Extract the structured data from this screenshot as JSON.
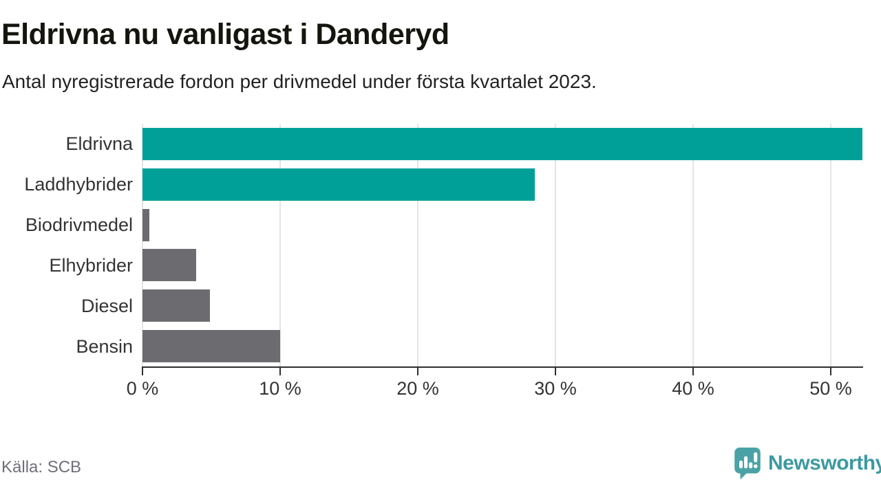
{
  "header": {
    "title": "Eldrivna nu vanligast i Danderyd",
    "subtitle": "Antal nyregistrerade fordon per drivmedel under första kvartalet 2023."
  },
  "chart_data": {
    "type": "bar",
    "orientation": "horizontal",
    "title": "Eldrivna nu vanligast i Danderyd",
    "subtitle": "Antal nyregistrerade fordon per drivmedel under första kvartalet 2023.",
    "categories": [
      "Eldrivna",
      "Laddhybrider",
      "Biodrivmedel",
      "Elhybrider",
      "Diesel",
      "Bensin"
    ],
    "values": [
      52.3,
      28.5,
      0.5,
      3.9,
      4.9,
      10.0
    ],
    "unit": "%",
    "bar_colors": [
      "#00a099",
      "#00a099",
      "#6c6c70",
      "#6c6c70",
      "#6c6c70",
      "#6c6c70"
    ],
    "xlabel": "",
    "ylabel": "",
    "xlim": [
      0,
      52.3
    ],
    "x_ticks": [
      0,
      10,
      20,
      30,
      40,
      50
    ],
    "x_tick_labels": [
      "0 %",
      "10 %",
      "20 %",
      "30 %",
      "40 %",
      "50 %"
    ],
    "grid": true,
    "legend": false
  },
  "footer": {
    "source": "Källa: SCB",
    "brand": "Newsworthy"
  },
  "colors": {
    "bar_teal": "#00a099",
    "bar_gray": "#6c6c70",
    "gridline": "#e4e4e4",
    "axis": "#2e2e2e",
    "label_text": "#333333",
    "source_gray": "#6f6f7a",
    "brand_teal": "#3c9aa0",
    "icon_teal": "#4aa2a7"
  }
}
